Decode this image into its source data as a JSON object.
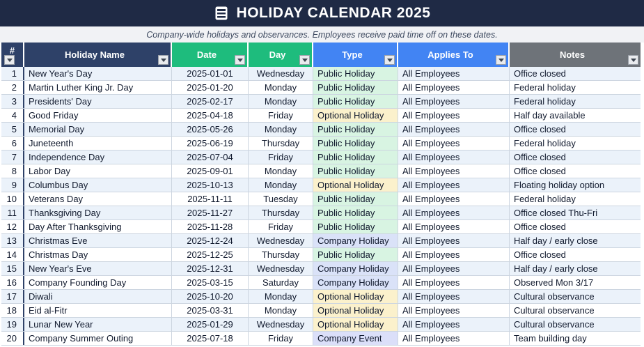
{
  "header": {
    "title": "HOLIDAY CALENDAR 2025",
    "icon": "calendar-icon"
  },
  "subtitle": "Company-wide holidays and observances. Employees receive paid time off on these dates.",
  "colors": {
    "topbar": "#1F2A45",
    "header_navy": "#2E4168",
    "header_green": "#1EBC7D",
    "header_blue": "#4284F3",
    "header_gray": "#6E7379",
    "stripe": "#EBF2FA",
    "border": "#CCD5E0"
  },
  "table": {
    "columns": [
      {
        "key": "num",
        "label": "#"
      },
      {
        "key": "name",
        "label": "Holiday Name"
      },
      {
        "key": "date",
        "label": "Date"
      },
      {
        "key": "day",
        "label": "Day"
      },
      {
        "key": "type",
        "label": "Type"
      },
      {
        "key": "applies",
        "label": "Applies To"
      },
      {
        "key": "notes",
        "label": "Notes"
      }
    ],
    "type_colors": {
      "Public Holiday": "#D8F4E2",
      "Optional Holiday": "#FBF1CC",
      "Company Holiday": "#DAE2F8",
      "Company Event": "#DBDFF9"
    },
    "rows": [
      {
        "num": 1,
        "name": "New Year's Day",
        "date": "2025-01-01",
        "day": "Wednesday",
        "type": "Public Holiday",
        "applies": "All Employees",
        "notes": "Office closed"
      },
      {
        "num": 2,
        "name": "Martin Luther King Jr. Day",
        "date": "2025-01-20",
        "day": "Monday",
        "type": "Public Holiday",
        "applies": "All Employees",
        "notes": "Federal holiday"
      },
      {
        "num": 3,
        "name": "Presidents' Day",
        "date": "2025-02-17",
        "day": "Monday",
        "type": "Public Holiday",
        "applies": "All Employees",
        "notes": "Federal holiday"
      },
      {
        "num": 4,
        "name": "Good Friday",
        "date": "2025-04-18",
        "day": "Friday",
        "type": "Optional Holiday",
        "applies": "All Employees",
        "notes": "Half day available"
      },
      {
        "num": 5,
        "name": "Memorial Day",
        "date": "2025-05-26",
        "day": "Monday",
        "type": "Public Holiday",
        "applies": "All Employees",
        "notes": "Office closed"
      },
      {
        "num": 6,
        "name": "Juneteenth",
        "date": "2025-06-19",
        "day": "Thursday",
        "type": "Public Holiday",
        "applies": "All Employees",
        "notes": "Federal holiday"
      },
      {
        "num": 7,
        "name": "Independence Day",
        "date": "2025-07-04",
        "day": "Friday",
        "type": "Public Holiday",
        "applies": "All Employees",
        "notes": "Office closed"
      },
      {
        "num": 8,
        "name": "Labor Day",
        "date": "2025-09-01",
        "day": "Monday",
        "type": "Public Holiday",
        "applies": "All Employees",
        "notes": "Office closed"
      },
      {
        "num": 9,
        "name": "Columbus Day",
        "date": "2025-10-13",
        "day": "Monday",
        "type": "Optional Holiday",
        "applies": "All Employees",
        "notes": "Floating holiday option"
      },
      {
        "num": 10,
        "name": "Veterans Day",
        "date": "2025-11-11",
        "day": "Tuesday",
        "type": "Public Holiday",
        "applies": "All Employees",
        "notes": "Federal holiday"
      },
      {
        "num": 11,
        "name": "Thanksgiving Day",
        "date": "2025-11-27",
        "day": "Thursday",
        "type": "Public Holiday",
        "applies": "All Employees",
        "notes": "Office closed Thu-Fri"
      },
      {
        "num": 12,
        "name": "Day After Thanksgiving",
        "date": "2025-11-28",
        "day": "Friday",
        "type": "Public Holiday",
        "applies": "All Employees",
        "notes": "Office closed"
      },
      {
        "num": 13,
        "name": "Christmas Eve",
        "date": "2025-12-24",
        "day": "Wednesday",
        "type": "Company Holiday",
        "applies": "All Employees",
        "notes": "Half day / early close"
      },
      {
        "num": 14,
        "name": "Christmas Day",
        "date": "2025-12-25",
        "day": "Thursday",
        "type": "Public Holiday",
        "applies": "All Employees",
        "notes": "Office closed"
      },
      {
        "num": 15,
        "name": "New Year's Eve",
        "date": "2025-12-31",
        "day": "Wednesday",
        "type": "Company Holiday",
        "applies": "All Employees",
        "notes": "Half day / early close"
      },
      {
        "num": 16,
        "name": "Company Founding Day",
        "date": "2025-03-15",
        "day": "Saturday",
        "type": "Company Holiday",
        "applies": "All Employees",
        "notes": "Observed Mon 3/17"
      },
      {
        "num": 17,
        "name": "Diwali",
        "date": "2025-10-20",
        "day": "Monday",
        "type": "Optional Holiday",
        "applies": "All Employees",
        "notes": "Cultural observance"
      },
      {
        "num": 18,
        "name": "Eid al-Fitr",
        "date": "2025-03-31",
        "day": "Monday",
        "type": "Optional Holiday",
        "applies": "All Employees",
        "notes": "Cultural observance"
      },
      {
        "num": 19,
        "name": "Lunar New Year",
        "date": "2025-01-29",
        "day": "Wednesday",
        "type": "Optional Holiday",
        "applies": "All Employees",
        "notes": "Cultural observance"
      },
      {
        "num": 20,
        "name": "Company Summer Outing",
        "date": "2025-07-18",
        "day": "Friday",
        "type": "Company Event",
        "applies": "All Employees",
        "notes": "Team building day"
      }
    ]
  }
}
